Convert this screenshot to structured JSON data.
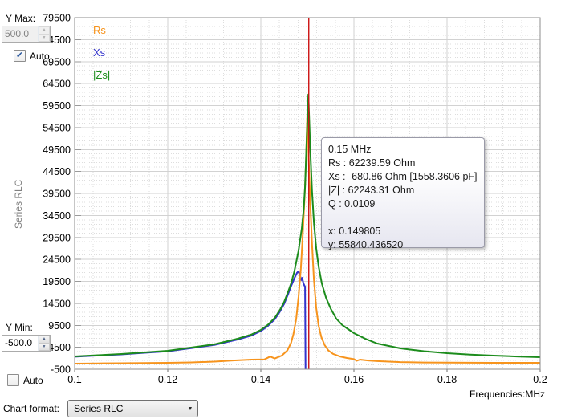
{
  "controls": {
    "y_max_label": "Y Max:",
    "y_max_value": "500.0",
    "y_min_label": "Y Min:",
    "y_min_value": "-500.0",
    "auto_label": "Auto",
    "chart_format_label": "Chart format:",
    "chart_format_value": "Series RLC"
  },
  "icons": {
    "checkmark": "✔",
    "dropdown_arrow": "▼",
    "spinner_up": "▲",
    "spinner_down": "▼"
  },
  "side_label": "Series RLC",
  "tooltip": {
    "lines": [
      "0.15 MHz",
      "Rs :  62239.59 Ohm",
      "Xs :  -680.86 Ohm [1558.3606 pF]",
      "|Z| :  62243.31 Ohm",
      "Q :  0.0109"
    ],
    "cursor_lines": [
      "x: 0.149805",
      "y: 55840.436520"
    ]
  },
  "chart_data": {
    "type": "line",
    "title": "",
    "xlabel": "Frequencies:MHz",
    "ylabel": "Series RLC",
    "xlim": [
      0.1,
      0.2
    ],
    "ylim": [
      -500,
      79500
    ],
    "x_major_step": 0.02,
    "x_minor_step": 0.004,
    "y_major_step": 5000,
    "y_minor_step": 1000,
    "x_tick_labels": [
      "0.1",
      "0.12",
      "0.14",
      "0.16",
      "0.18",
      "0.2"
    ],
    "y_tick_labels": [
      "-500",
      "4500",
      "9500",
      "14500",
      "19500",
      "24500",
      "29500",
      "34500",
      "39500",
      "44500",
      "49500",
      "54500",
      "59500",
      "64500",
      "69500",
      "74500",
      "79500"
    ],
    "grid": true,
    "legend_position": "top-left",
    "cursor_x": 0.1503,
    "cursor_color": "#CC1111",
    "series": [
      {
        "name": "Rs",
        "color": "#F7941D",
        "z": 1,
        "points": [
          [
            0.1,
            780
          ],
          [
            0.105,
            825
          ],
          [
            0.11,
            870
          ],
          [
            0.115,
            915
          ],
          [
            0.12,
            960
          ],
          [
            0.125,
            1060
          ],
          [
            0.13,
            1230
          ],
          [
            0.134,
            1500
          ],
          [
            0.138,
            1700
          ],
          [
            0.1408,
            1750
          ],
          [
            0.142,
            2380
          ],
          [
            0.143,
            1950
          ],
          [
            0.1445,
            2600
          ],
          [
            0.1457,
            3800
          ],
          [
            0.1465,
            5500
          ],
          [
            0.147,
            7500
          ],
          [
            0.1476,
            11000
          ],
          [
            0.1481,
            16000
          ],
          [
            0.1486,
            22500
          ],
          [
            0.149,
            30000
          ],
          [
            0.1494,
            38500
          ],
          [
            0.1497,
            47000
          ],
          [
            0.15,
            58000
          ],
          [
            0.1503,
            47000
          ],
          [
            0.1506,
            38000
          ],
          [
            0.151,
            28000
          ],
          [
            0.1514,
            20000
          ],
          [
            0.1519,
            13500
          ],
          [
            0.1524,
            9500
          ],
          [
            0.153,
            6800
          ],
          [
            0.1537,
            5000
          ],
          [
            0.1545,
            3800
          ],
          [
            0.1555,
            3000
          ],
          [
            0.157,
            2400
          ],
          [
            0.1585,
            2050
          ],
          [
            0.16,
            1800
          ],
          [
            0.1606,
            1420
          ],
          [
            0.1613,
            1700
          ],
          [
            0.163,
            1500
          ],
          [
            0.165,
            1350
          ],
          [
            0.17,
            1130
          ],
          [
            0.175,
            1030
          ],
          [
            0.18,
            1000
          ],
          [
            0.19,
            970
          ],
          [
            0.2,
            960
          ]
        ]
      },
      {
        "name": "Xs",
        "color": "#3333CC",
        "z": 0,
        "points": [
          [
            0.1,
            2350
          ],
          [
            0.105,
            2620
          ],
          [
            0.11,
            2880
          ],
          [
            0.115,
            3240
          ],
          [
            0.12,
            3590
          ],
          [
            0.125,
            4300
          ],
          [
            0.13,
            5010
          ],
          [
            0.135,
            6250
          ],
          [
            0.138,
            7180
          ],
          [
            0.14,
            8200
          ],
          [
            0.1415,
            9320
          ],
          [
            0.143,
            10870
          ],
          [
            0.1441,
            12620
          ],
          [
            0.145,
            14360
          ],
          [
            0.1457,
            16200
          ],
          [
            0.1465,
            18400
          ],
          [
            0.1472,
            20200
          ],
          [
            0.1478,
            21500
          ],
          [
            0.1481,
            21800
          ],
          [
            0.1484,
            20800
          ],
          [
            0.1487,
            19800
          ],
          [
            0.1489,
            20300
          ],
          [
            0.1491,
            19200
          ],
          [
            0.1493,
            18700
          ],
          [
            0.1495,
            18300
          ],
          [
            0.1496,
            -680
          ],
          [
            0.151,
            -4000
          ],
          [
            0.16,
            -7500
          ],
          [
            0.17,
            -5500
          ],
          [
            0.18,
            -4200
          ],
          [
            0.19,
            -3400
          ],
          [
            0.2,
            -2900
          ]
        ]
      },
      {
        "name": "|Zs|",
        "color": "#1C8C1C",
        "z": 2,
        "points": [
          [
            0.1,
            2420
          ],
          [
            0.105,
            2700
          ],
          [
            0.11,
            2970
          ],
          [
            0.115,
            3340
          ],
          [
            0.12,
            3700
          ],
          [
            0.125,
            4430
          ],
          [
            0.13,
            5160
          ],
          [
            0.135,
            6440
          ],
          [
            0.138,
            7400
          ],
          [
            0.14,
            8450
          ],
          [
            0.1415,
            9600
          ],
          [
            0.143,
            11200
          ],
          [
            0.1441,
            13000
          ],
          [
            0.145,
            14800
          ],
          [
            0.1457,
            16700
          ],
          [
            0.1465,
            19000
          ],
          [
            0.1472,
            21800
          ],
          [
            0.1481,
            26500
          ],
          [
            0.1488,
            31500
          ],
          [
            0.1492,
            36000
          ],
          [
            0.1495,
            41000
          ],
          [
            0.1498,
            50000
          ],
          [
            0.1502,
            62000
          ],
          [
            0.1506,
            50000
          ],
          [
            0.151,
            40000
          ],
          [
            0.1514,
            33000
          ],
          [
            0.1519,
            27000
          ],
          [
            0.1524,
            23000
          ],
          [
            0.1531,
            19000
          ],
          [
            0.154,
            15800
          ],
          [
            0.155,
            13300
          ],
          [
            0.1562,
            11000
          ],
          [
            0.1575,
            9550
          ],
          [
            0.16,
            7720
          ],
          [
            0.1625,
            6400
          ],
          [
            0.165,
            5350
          ],
          [
            0.17,
            4250
          ],
          [
            0.175,
            3610
          ],
          [
            0.18,
            3150
          ],
          [
            0.185,
            2850
          ],
          [
            0.19,
            2600
          ],
          [
            0.195,
            2400
          ],
          [
            0.2,
            2240
          ]
        ]
      }
    ]
  }
}
